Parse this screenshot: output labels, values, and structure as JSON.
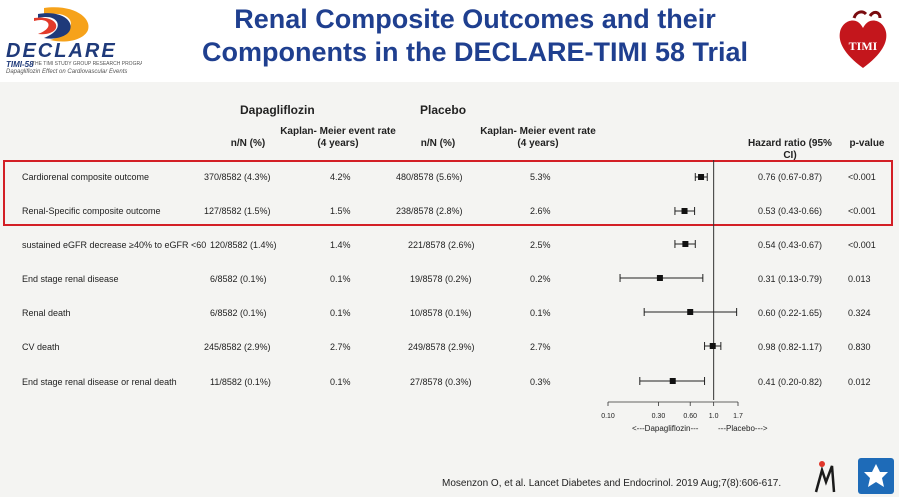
{
  "header": {
    "logo_text": "DECLARE",
    "logo_sub": "TIMI-58",
    "logo_sub_small": "THE TIMI STUDY GROUP RESEARCH PROGRAM",
    "logo_tagline": "Dapagliflozin Effect on Cardiovascular Events",
    "title_line1": "Renal Composite Outcomes and their",
    "title_line2": "Components in the DECLARE-TIMI 58 Trial",
    "timi_badge": "TIMI"
  },
  "columns": {
    "group1": "Dapagliflozin",
    "group2": "Placebo",
    "nN": "n/N (%)",
    "km_line1": "Kaplan- Meier event rate",
    "km_line2": "(4 years)",
    "hr": "Hazard ratio (95% CI)",
    "p": "p-value"
  },
  "rows": [
    {
      "label": "Cardiorenal composite outcome",
      "d_n": "370/8582 (4.3%)",
      "d_km": "4.2%",
      "p_n": "480/8578 (5.6%)",
      "p_km": "5.3%",
      "hr": "0.76 (0.67-0.87)",
      "p": "<0.001"
    },
    {
      "label": "Renal-Specific composite outcome",
      "d_n": "127/8582 (1.5%)",
      "d_km": "1.5%",
      "p_n": "238/8578 (2.8%)",
      "p_km": "2.6%",
      "hr": "0.53 (0.43-0.66)",
      "p": "<0.001"
    },
    {
      "label": "sustained eGFR decrease ≥40% to eGFR <60",
      "d_n": "120/8582 (1.4%)",
      "d_km": "1.4%",
      "p_n": "221/8578 (2.6%)",
      "p_km": "2.5%",
      "hr": "0.54 (0.43-0.67)",
      "p": "<0.001"
    },
    {
      "label": "End stage renal disease",
      "d_n": "6/8582 (0.1%)",
      "d_km": "0.1%",
      "p_n": "19/8578 (0.2%)",
      "p_km": "0.2%",
      "hr": "0.31 (0.13-0.79)",
      "p": "0.013"
    },
    {
      "label": "Renal death",
      "d_n": "6/8582 (0.1%)",
      "d_km": "0.1%",
      "p_n": "10/8578 (0.1%)",
      "p_km": "0.1%",
      "hr": "0.60 (0.22-1.65)",
      "p": "0.324"
    },
    {
      "label": "CV death",
      "d_n": "245/8582 (2.9%)",
      "d_km": "2.7%",
      "p_n": "249/8578 (2.9%)",
      "p_km": "2.7%",
      "hr": "0.98 (0.82-1.17)",
      "p": "0.830"
    },
    {
      "label": "End stage renal disease or renal death",
      "d_n": "11/8582 (0.1%)",
      "d_km": "0.1%",
      "p_n": "27/8578 (0.3%)",
      "p_km": "0.3%",
      "hr": "0.41 (0.20-0.82)",
      "p": "0.012"
    }
  ],
  "forest": {
    "ticks": [
      "0.10",
      "0.30",
      "0.60",
      "1.0",
      "1.7"
    ],
    "tick_values": [
      0.1,
      0.3,
      0.6,
      1.0,
      1.7
    ],
    "left_label": "<---Dapagliflozin---",
    "right_label": "---Placebo--->"
  },
  "chart_data": {
    "type": "scatter",
    "title": "",
    "xlabel": "",
    "x_scale": "log",
    "xlim": [
      0.1,
      1.7
    ],
    "reference_line": 1.0,
    "series": [
      {
        "values": [
          {
            "label": "Cardiorenal composite outcome",
            "hr": 0.76,
            "lo": 0.67,
            "hi": 0.87
          },
          {
            "label": "Renal-Specific composite outcome",
            "hr": 0.53,
            "lo": 0.43,
            "hi": 0.66
          },
          {
            "label": "sustained eGFR decrease ≥40% to eGFR <60",
            "hr": 0.54,
            "lo": 0.43,
            "hi": 0.67
          },
          {
            "label": "End stage renal disease",
            "hr": 0.31,
            "lo": 0.13,
            "hi": 0.79
          },
          {
            "label": "Renal death",
            "hr": 0.6,
            "lo": 0.22,
            "hi": 1.65
          },
          {
            "label": "CV death",
            "hr": 0.98,
            "lo": 0.82,
            "hi": 1.17
          },
          {
            "label": "End stage renal disease or renal death",
            "hr": 0.41,
            "lo": 0.2,
            "hi": 0.82
          }
        ]
      }
    ]
  },
  "citation": "Mosenzon O, et al. Lancet Diabetes and Endocrinol. 2019 Aug;7(8):606-617.",
  "colors": {
    "title": "#1f3f8f",
    "highlight": "#d31f26"
  }
}
